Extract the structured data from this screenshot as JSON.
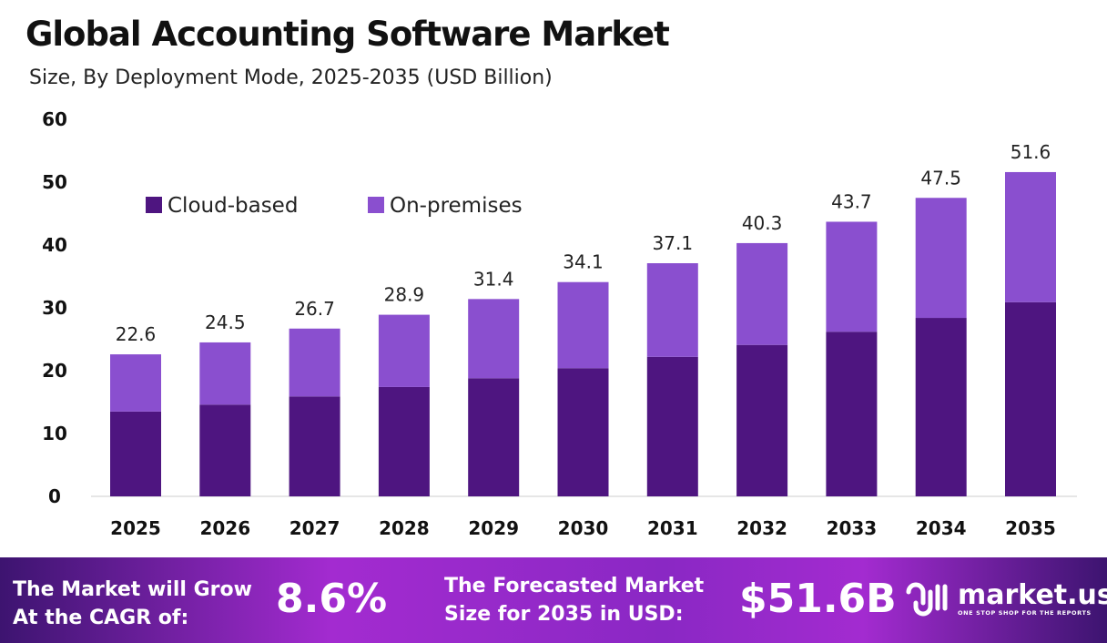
{
  "title": "Global Accounting Software Market",
  "subtitle": "Size, By Deployment Mode, 2025-2035 (USD Billion)",
  "chart_data": {
    "type": "bar",
    "stacked": true,
    "categories": [
      "2025",
      "2026",
      "2027",
      "2028",
      "2029",
      "2030",
      "2031",
      "2032",
      "2033",
      "2034",
      "2035"
    ],
    "series": [
      {
        "name": "Cloud-based",
        "color": "#4e1580",
        "values": [
          13.5,
          14.6,
          15.9,
          17.4,
          18.8,
          20.4,
          22.2,
          24.1,
          26.2,
          28.4,
          30.9
        ]
      },
      {
        "name": "On-premises",
        "color": "#8a4fcf",
        "values": [
          9.1,
          9.9,
          10.8,
          11.5,
          12.6,
          13.7,
          14.9,
          16.2,
          17.5,
          19.1,
          20.7
        ]
      }
    ],
    "totals": [
      "22.6",
      "24.5",
      "26.7",
      "28.9",
      "31.4",
      "34.1",
      "37.1",
      "40.3",
      "43.7",
      "47.5",
      "51.6"
    ],
    "ylim": [
      0,
      60
    ],
    "yticks": [
      "0",
      "10",
      "20",
      "30",
      "40",
      "50",
      "60"
    ],
    "grid": false,
    "legend": "top-left"
  },
  "footer": {
    "cagr_label_1": "The Market will Grow",
    "cagr_label_2": "At the CAGR of:",
    "cagr_value": "8.6%",
    "forecast_label_1": "The Forecasted Market",
    "forecast_label_2": "Size for 2035 in USD:",
    "forecast_value": "$51.6B",
    "logo_name": "market.us",
    "logo_tagline": "ONE STOP SHOP FOR THE REPORTS"
  }
}
